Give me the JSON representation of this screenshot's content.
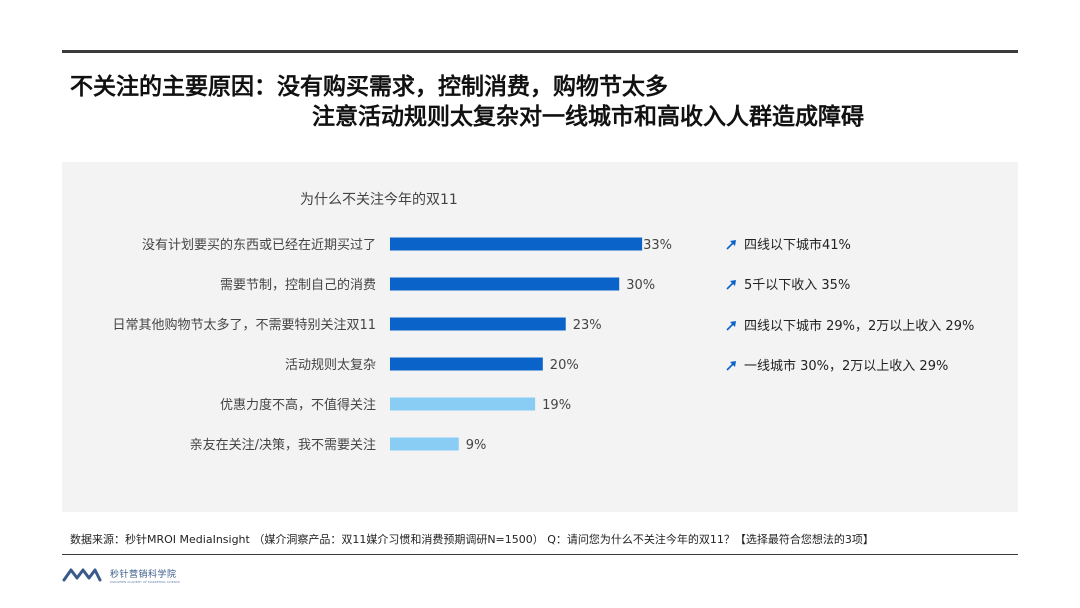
{
  "title": {
    "line1": "不关注的主要原因：没有购买需求，控制消费，购物节太多",
    "line2": "注意活动规则太复杂对一线城市和高收入人群造成障碍"
  },
  "chart_data": {
    "type": "bar",
    "orientation": "horizontal",
    "title": "为什么不关注今年的双11",
    "categories": [
      "没有计划要买的东西或已经在近期买过了",
      "需要节制，控制自己的消费",
      "日常其他购物节太多了，不需要特别关注双11",
      "活动规则太复杂",
      "优惠力度不高，不值得关注",
      "亲友在关注/决策，我不需要关注"
    ],
    "values": [
      33,
      30,
      23,
      20,
      19,
      9
    ],
    "value_labels": [
      "33%",
      "30%",
      "23%",
      "20%",
      "19%",
      "9%"
    ],
    "bar_colors": [
      "#0a63c9",
      "#0a63c9",
      "#0a63c9",
      "#0a63c9",
      "#89cdf4",
      "#89cdf4"
    ],
    "annotations": [
      "四线以下城市41%",
      "5千以下收入 35%",
      "四线以下城市 29%，2万以上收入 29%",
      "一线城市 30%，2万以上收入 29%"
    ],
    "annotation_icon": "trend-up-arrow-icon",
    "annotation_color": "#0a63c9",
    "xlim": [
      0,
      40
    ],
    "grid": false
  },
  "footnote": "数据来源：秒针MROI MediaInsight （媒介洞察产品：双11媒介习惯和消费预期调研N=1500） Q：请问您为什么不关注今年的双11？【选择最符合您想法的3项】",
  "logo": {
    "name": "秒针营销科学院",
    "sub": "MIAOZHEN ACADEMY OF MARKETING SCIENCE",
    "icon": "miaozhen-logo-icon",
    "color": "#3a5a8a"
  }
}
